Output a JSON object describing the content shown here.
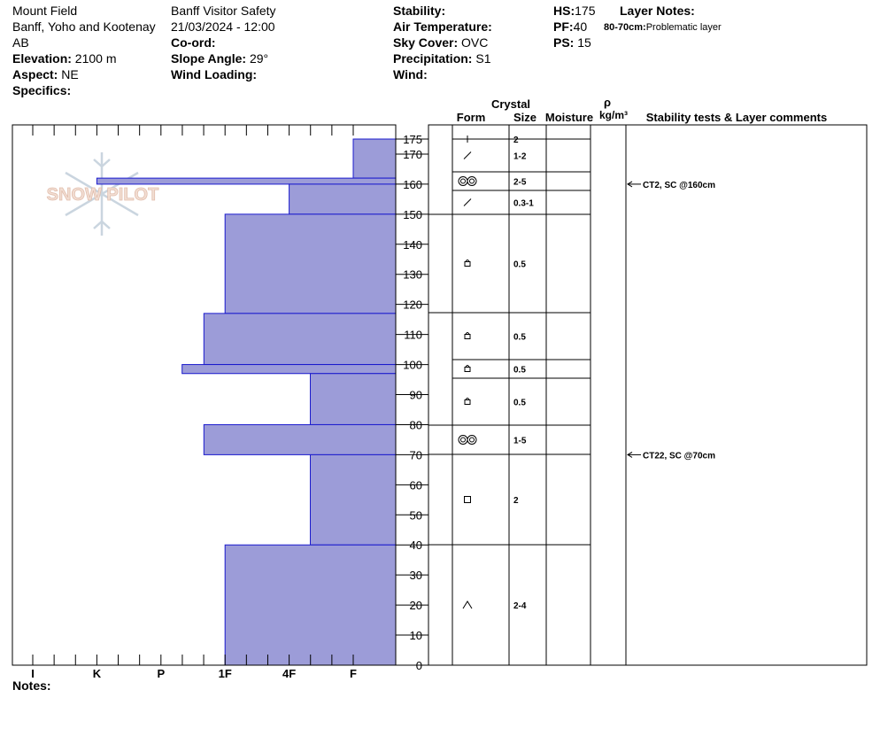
{
  "header": {
    "location": "Mount Field",
    "region": "Banff, Yoho and Kootenay",
    "province": "AB",
    "elevation_label": "Elevation:",
    "elevation_value": "2100 m",
    "aspect_label": "Aspect:",
    "aspect_value": "NE",
    "specifics_label": "Specifics:",
    "observer": "Banff  Visitor Safety",
    "datetime": "21/03/2024 - 12:00",
    "coord_label": "Co-ord:",
    "slope_label": "Slope Angle:",
    "slope_value": "29°",
    "wind_loading_label": "Wind Loading:",
    "stability_label": "Stability:",
    "air_temp_label": "Air Temperature:",
    "sky_label": "Sky Cover:",
    "sky_value": "OVC",
    "precip_label": "Precipitation:",
    "precip_value": "S1",
    "wind_label": "Wind:",
    "hs_label": "HS:",
    "hs_value": "175",
    "pf_label": "PF:",
    "pf_value": "40",
    "ps_label": "PS:",
    "ps_value": "15",
    "layer_notes_label": "Layer Notes:",
    "layer_note_range": "80-70cm:",
    "layer_note_text": "Problematic layer"
  },
  "logo_text": "SNOW PILOT",
  "notes_label": "Notes:",
  "columns": {
    "crystal": "Crystal",
    "form": "Form",
    "size": "Size",
    "moisture": "Moisture",
    "rho": "ρ",
    "density_unit": "kg/m³",
    "stability": "Stability tests & Layer comments"
  },
  "colors": {
    "hardness_fill": "#9c9cd8",
    "hardness_edge": "#1a1acd"
  },
  "chart_data": {
    "type": "bar",
    "orientation": "horizontal",
    "y_label": "",
    "ylim": [
      0,
      175
    ],
    "y_ticks": [
      0,
      10,
      20,
      30,
      40,
      50,
      60,
      70,
      80,
      90,
      100,
      110,
      120,
      130,
      140,
      150,
      160,
      170,
      175
    ],
    "x_categories": [
      "I",
      "K",
      "P",
      "1F",
      "4F",
      "F"
    ],
    "x_category_values": [
      6,
      5,
      4,
      3,
      2,
      1
    ],
    "hardness_layers": [
      {
        "top": 175,
        "bottom": 162,
        "hardness": "F"
      },
      {
        "top": 162,
        "bottom": 160,
        "hardness": "K"
      },
      {
        "top": 160,
        "bottom": 150,
        "hardness": "4F"
      },
      {
        "top": 150,
        "bottom": 117,
        "hardness": "1F"
      },
      {
        "top": 117,
        "bottom": 100,
        "hardness": "1F+"
      },
      {
        "top": 100,
        "bottom": 97,
        "hardness": "P-"
      },
      {
        "top": 97,
        "bottom": 80,
        "hardness": "4F-"
      },
      {
        "top": 80,
        "bottom": 70,
        "hardness": "1F+"
      },
      {
        "top": 70,
        "bottom": 40,
        "hardness": "4F-"
      },
      {
        "top": 40,
        "bottom": 0,
        "hardness": "1F"
      }
    ],
    "hardness_values": [
      1,
      5,
      2,
      3,
      3.33,
      3.67,
      1.67,
      3.33,
      1.67,
      3
    ],
    "layer_rows": [
      {
        "top": 175,
        "bottom": 170,
        "form": "+",
        "size": "2"
      },
      {
        "top": 170,
        "bottom": 164,
        "form": "/",
        "size": "1-2"
      },
      {
        "top": 164,
        "bottom": 158,
        "form": "surface-hoar",
        "size": "2-5"
      },
      {
        "top": 158,
        "bottom": 150,
        "form": "/",
        "size": "0.3-1"
      },
      {
        "top": 150,
        "bottom": 117,
        "form": "round",
        "size": "0.5"
      },
      {
        "top": 117,
        "bottom": 102,
        "form": "round",
        "size": "0.5"
      },
      {
        "top": 102,
        "bottom": 96,
        "form": "round",
        "size": "0.5"
      },
      {
        "top": 96,
        "bottom": 80,
        "form": "round",
        "size": "0.5"
      },
      {
        "top": 80,
        "bottom": 70,
        "form": "surface-hoar",
        "size": "1-5"
      },
      {
        "top": 70,
        "bottom": 40,
        "form": "facet",
        "size": "2"
      },
      {
        "top": 40,
        "bottom": 0,
        "form": "depth-hoar",
        "size": "2-4"
      }
    ],
    "stability_tests": [
      {
        "depth": 160,
        "text": "CT2, SC @160cm"
      },
      {
        "depth": 70,
        "text": "CT22, SC @70cm"
      }
    ]
  }
}
